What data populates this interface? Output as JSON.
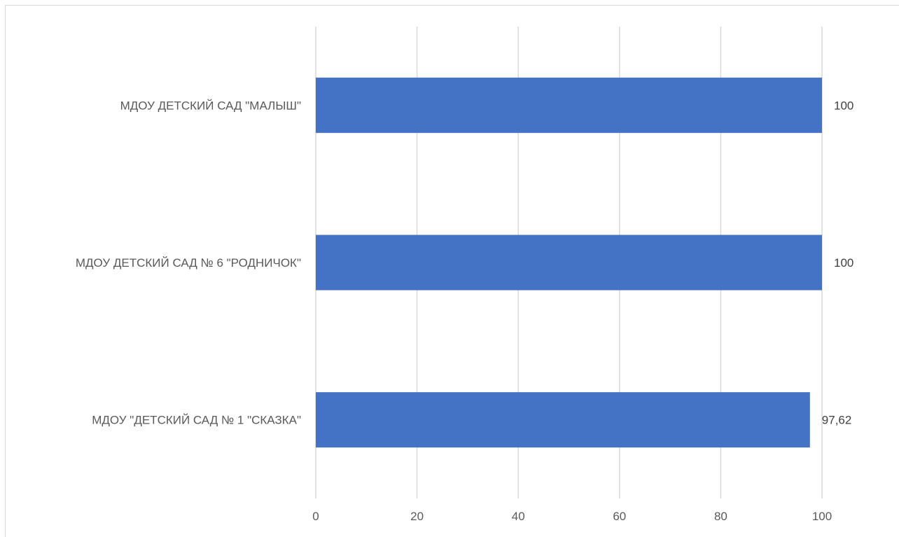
{
  "chart_data": {
    "type": "bar",
    "orientation": "horizontal",
    "categories": [
      "МДОУ ДЕТСКИЙ САД \"МАЛЫШ\"",
      "МДОУ ДЕТСКИЙ САД № 6 \"РОДНИЧОК\"",
      "МДОУ \"ДЕТСКИЙ САД № 1 \"СКАЗКА\""
    ],
    "values": [
      100,
      100,
      97.62
    ],
    "data_labels": [
      "100",
      "100",
      "97,62"
    ],
    "xlim": [
      0,
      100
    ],
    "xticks": [
      0,
      20,
      40,
      60,
      80,
      100
    ],
    "grid": true,
    "legend": "none",
    "title": "",
    "xlabel": "",
    "ylabel": "",
    "bar_color": "#4472c4"
  }
}
